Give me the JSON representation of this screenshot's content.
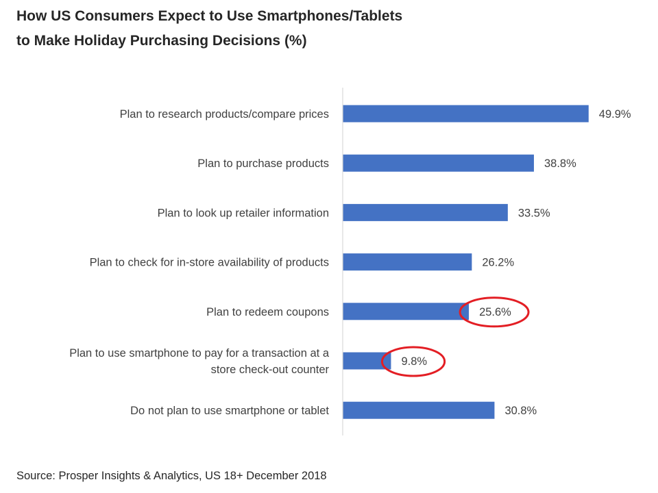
{
  "chart_data": {
    "type": "bar",
    "orientation": "horizontal",
    "title_lines": [
      "How US Consumers Expect to Use Smartphones/Tablets",
      "to Make Holiday Purchasing Decisions (%)"
    ],
    "categories": [
      [
        "Plan to research products/compare prices"
      ],
      [
        "Plan to purchase products"
      ],
      [
        "Plan to look up retailer information"
      ],
      [
        "Plan to check for in-store availability of products"
      ],
      [
        "Plan to redeem coupons"
      ],
      [
        "Plan to use smartphone to pay for a transaction at a",
        "store check-out counter"
      ],
      [
        "Do not plan to use smartphone or tablet"
      ]
    ],
    "values": [
      49.9,
      38.8,
      33.5,
      26.2,
      25.6,
      9.8,
      30.8
    ],
    "value_labels": [
      "49.9%",
      "38.8%",
      "33.5%",
      "26.2%",
      "25.6%",
      "9.8%",
      "30.8%"
    ],
    "highlighted": [
      false,
      false,
      false,
      false,
      true,
      true,
      false
    ],
    "xlim": [
      0,
      50
    ],
    "grid": false,
    "legend": "none",
    "bar_color": "#4472c4",
    "highlight_color": "#e31e24",
    "source": "Source: Prosper Insights & Analytics, US 18+ December 2018"
  }
}
